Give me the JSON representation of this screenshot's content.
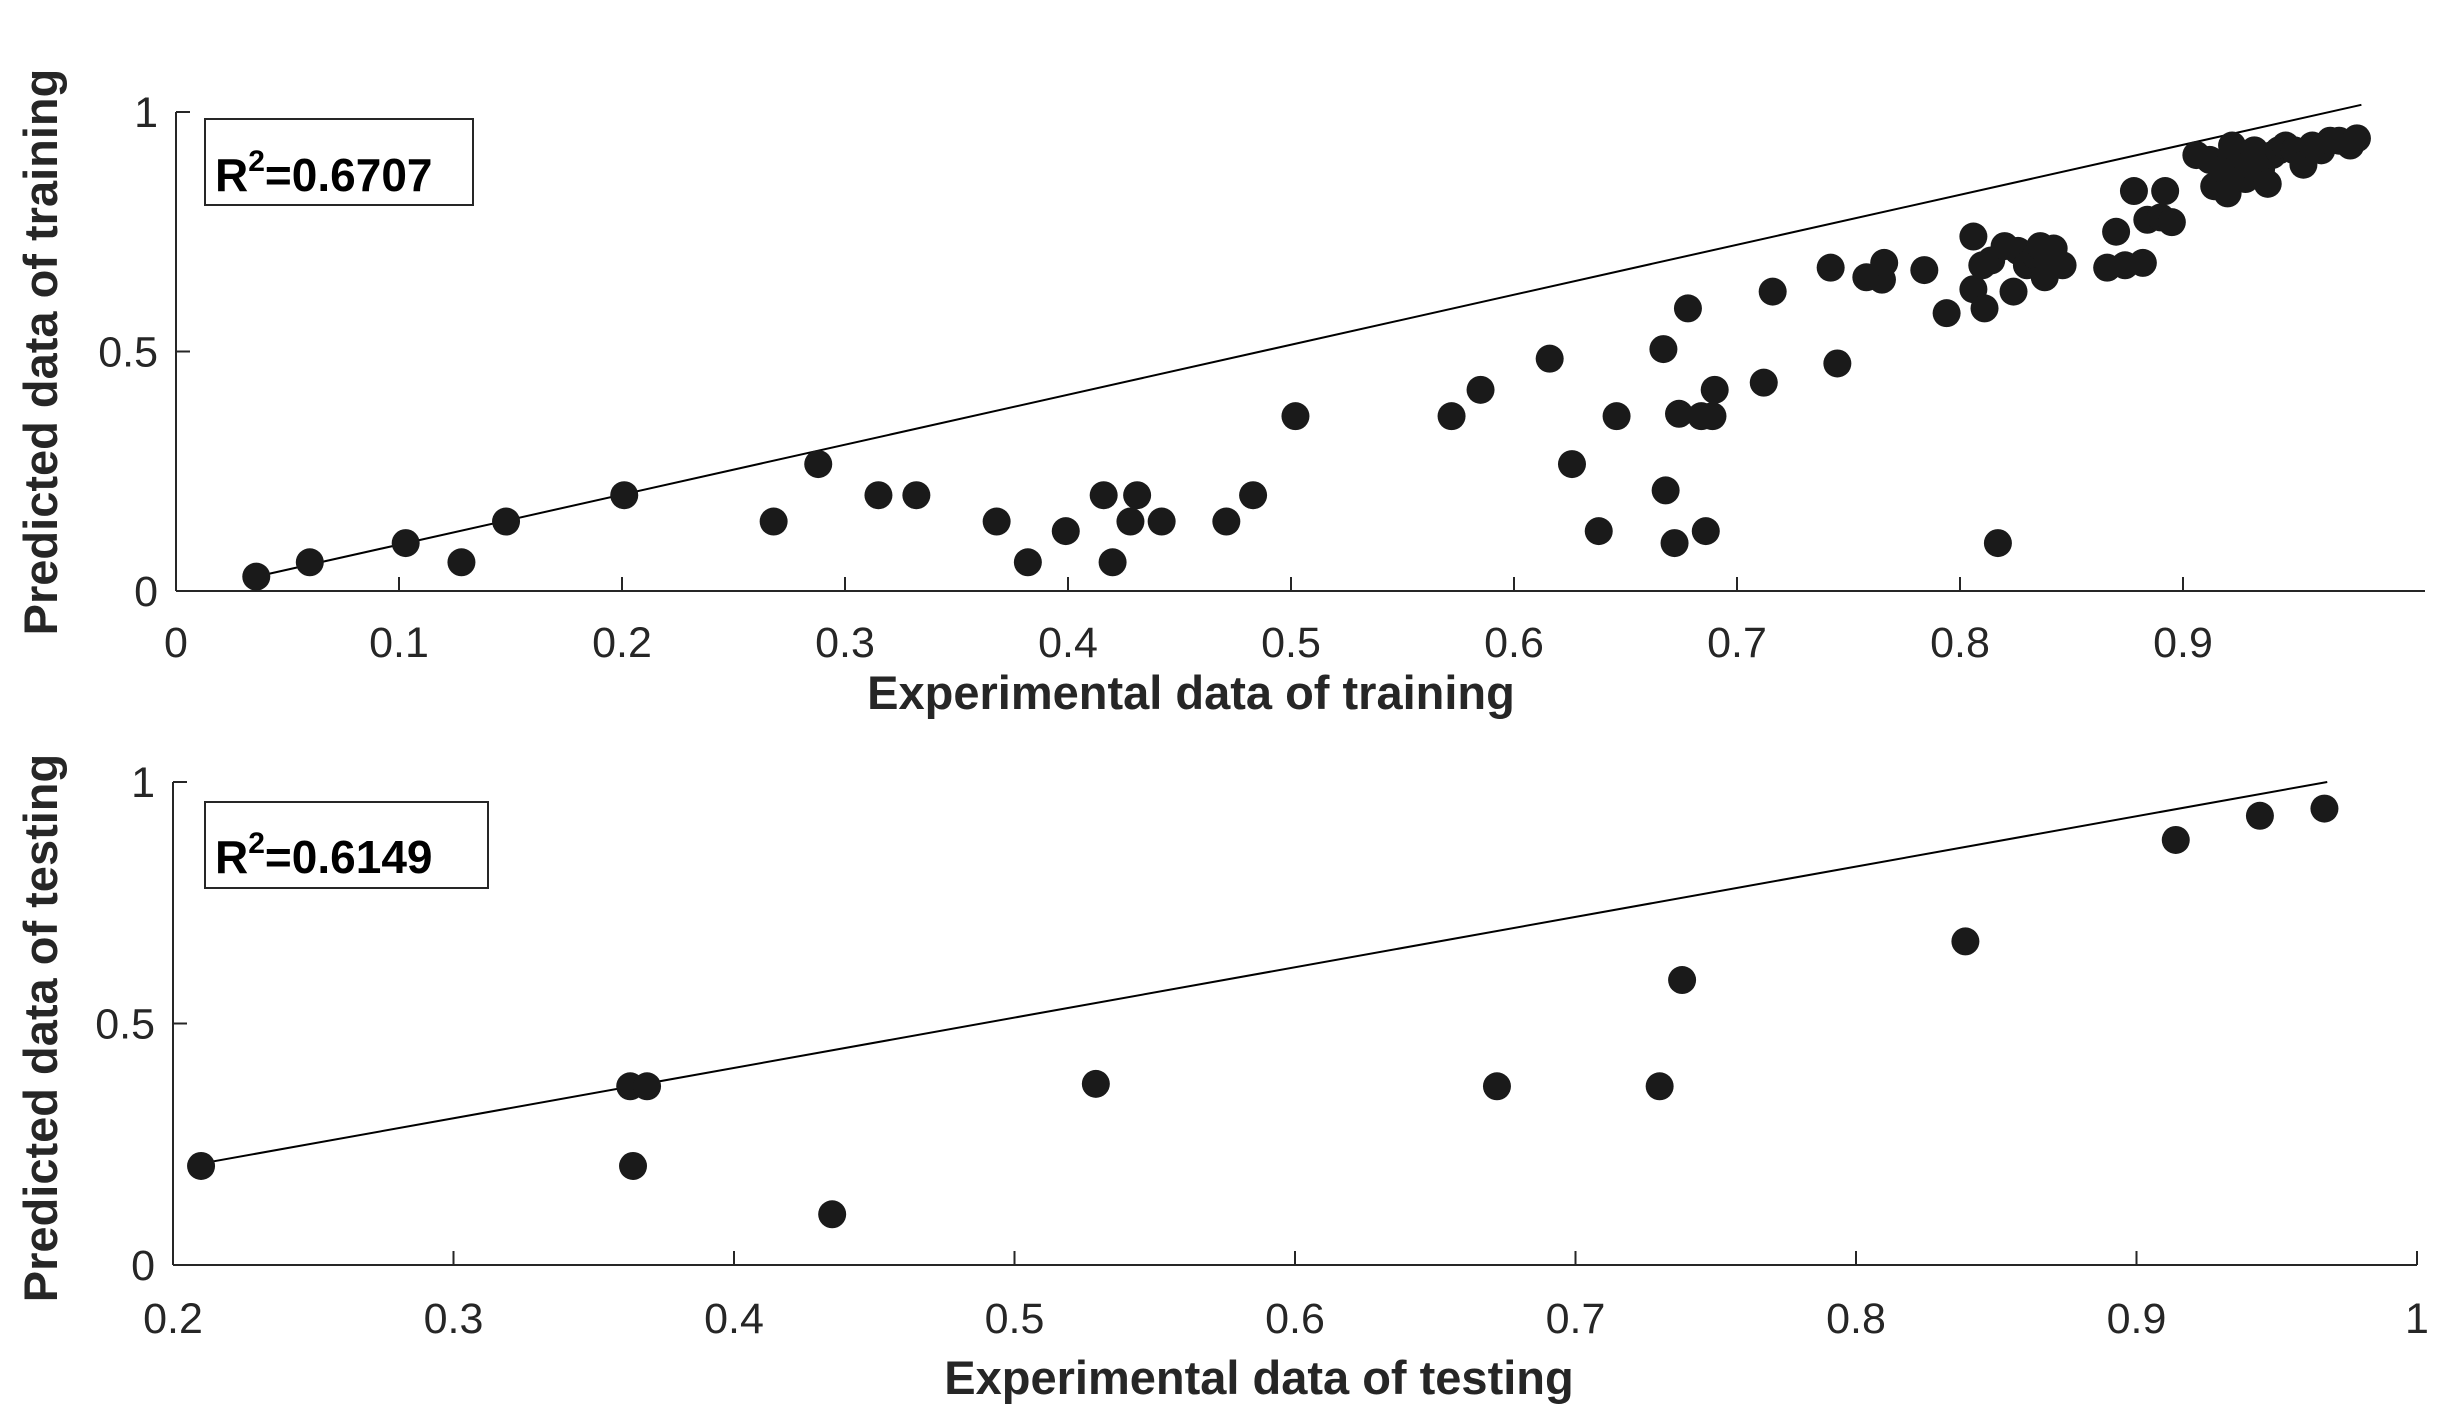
{
  "chart_data": [
    {
      "type": "scatter",
      "panel": "training",
      "xlabel": "Experimental data of training",
      "ylabel": "Predicted data of training",
      "r2_prefix": "R",
      "r2_sup": "2",
      "r2_value": "=0.6707",
      "xlim": [
        0,
        1
      ],
      "ylim": [
        0,
        1
      ],
      "xticks": [
        0,
        0.1,
        0.2,
        0.3,
        0.4,
        0.5,
        0.6,
        0.7,
        0.8,
        0.9
      ],
      "xtick_labels": [
        "0",
        "0.1",
        "0.2",
        "0.3",
        "0.4",
        "0.5",
        "0.6",
        "0.7",
        "0.8",
        "0.9"
      ],
      "yticks": [
        0,
        0.5,
        1
      ],
      "ytick_labels": [
        "0",
        "0.5",
        "1"
      ],
      "fit_line": [
        [
          0.036,
          0.03
        ],
        [
          0.98,
          1.015
        ]
      ],
      "points": [
        [
          0.036,
          0.03
        ],
        [
          0.06,
          0.06
        ],
        [
          0.103,
          0.1
        ],
        [
          0.128,
          0.06
        ],
        [
          0.148,
          0.145
        ],
        [
          0.201,
          0.2
        ],
        [
          0.268,
          0.145
        ],
        [
          0.288,
          0.265
        ],
        [
          0.315,
          0.2
        ],
        [
          0.332,
          0.2
        ],
        [
          0.368,
          0.145
        ],
        [
          0.382,
          0.06
        ],
        [
          0.399,
          0.125
        ],
        [
          0.416,
          0.2
        ],
        [
          0.42,
          0.06
        ],
        [
          0.428,
          0.145
        ],
        [
          0.431,
          0.2
        ],
        [
          0.442,
          0.145
        ],
        [
          0.471,
          0.145
        ],
        [
          0.483,
          0.2
        ],
        [
          0.502,
          0.365
        ],
        [
          0.572,
          0.365
        ],
        [
          0.585,
          0.42
        ],
        [
          0.616,
          0.485
        ],
        [
          0.626,
          0.265
        ],
        [
          0.638,
          0.125
        ],
        [
          0.646,
          0.365
        ],
        [
          0.667,
          0.505
        ],
        [
          0.668,
          0.21
        ],
        [
          0.672,
          0.1
        ],
        [
          0.674,
          0.37
        ],
        [
          0.678,
          0.59
        ],
        [
          0.684,
          0.365
        ],
        [
          0.686,
          0.125
        ],
        [
          0.689,
          0.365
        ],
        [
          0.69,
          0.42
        ],
        [
          0.712,
          0.435
        ],
        [
          0.716,
          0.625
        ],
        [
          0.742,
          0.675
        ],
        [
          0.745,
          0.475
        ],
        [
          0.758,
          0.655
        ],
        [
          0.765,
          0.65
        ],
        [
          0.766,
          0.685
        ],
        [
          0.784,
          0.67
        ],
        [
          0.794,
          0.58
        ],
        [
          0.806,
          0.74
        ],
        [
          0.806,
          0.63
        ],
        [
          0.81,
          0.68
        ],
        [
          0.811,
          0.59
        ],
        [
          0.814,
          0.69
        ],
        [
          0.817,
          0.1
        ],
        [
          0.82,
          0.72
        ],
        [
          0.824,
          0.625
        ],
        [
          0.826,
          0.71
        ],
        [
          0.83,
          0.68
        ],
        [
          0.834,
          0.7
        ],
        [
          0.836,
          0.72
        ],
        [
          0.838,
          0.655
        ],
        [
          0.84,
          0.68
        ],
        [
          0.842,
          0.715
        ],
        [
          0.846,
          0.68
        ],
        [
          0.866,
          0.675
        ],
        [
          0.87,
          0.75
        ],
        [
          0.874,
          0.68
        ],
        [
          0.878,
          0.835
        ],
        [
          0.882,
          0.685
        ],
        [
          0.884,
          0.775
        ],
        [
          0.89,
          0.78
        ],
        [
          0.892,
          0.835
        ],
        [
          0.895,
          0.77
        ],
        [
          0.906,
          0.91
        ],
        [
          0.912,
          0.9
        ],
        [
          0.914,
          0.845
        ],
        [
          0.918,
          0.88
        ],
        [
          0.92,
          0.83
        ],
        [
          0.922,
          0.93
        ],
        [
          0.924,
          0.87
        ],
        [
          0.926,
          0.91
        ],
        [
          0.928,
          0.86
        ],
        [
          0.93,
          0.89
        ],
        [
          0.932,
          0.92
        ],
        [
          0.935,
          0.88
        ],
        [
          0.938,
          0.85
        ],
        [
          0.94,
          0.91
        ],
        [
          0.943,
          0.92
        ],
        [
          0.946,
          0.93
        ],
        [
          0.95,
          0.92
        ],
        [
          0.954,
          0.89
        ],
        [
          0.958,
          0.93
        ],
        [
          0.962,
          0.92
        ],
        [
          0.966,
          0.94
        ],
        [
          0.97,
          0.94
        ],
        [
          0.975,
          0.93
        ],
        [
          0.978,
          0.945
        ]
      ]
    },
    {
      "type": "scatter",
      "panel": "testing",
      "xlabel": "Experimental data of testing",
      "ylabel": "Predicted data of testing",
      "r2_prefix": "R",
      "r2_sup": "2",
      "r2_value": "=0.6149",
      "xlim": [
        0.2,
        1
      ],
      "ylim": [
        0,
        1
      ],
      "xticks": [
        0.2,
        0.3,
        0.4,
        0.5,
        0.6,
        0.7,
        0.8,
        0.9,
        1
      ],
      "xtick_labels": [
        "0.2",
        "0.3",
        "0.4",
        "0.5",
        "0.6",
        "0.7",
        "0.8",
        "0.9",
        "1"
      ],
      "yticks": [
        0,
        0.5,
        1
      ],
      "ytick_labels": [
        "0",
        "0.5",
        "1"
      ],
      "fit_line": [
        [
          0.21,
          0.21
        ],
        [
          0.968,
          1.0
        ]
      ],
      "points": [
        [
          0.21,
          0.205
        ],
        [
          0.363,
          0.37
        ],
        [
          0.364,
          0.205
        ],
        [
          0.369,
          0.37
        ],
        [
          0.435,
          0.105
        ],
        [
          0.529,
          0.375
        ],
        [
          0.672,
          0.37
        ],
        [
          0.73,
          0.37
        ],
        [
          0.738,
          0.59
        ],
        [
          0.839,
          0.67
        ],
        [
          0.914,
          0.88
        ],
        [
          0.944,
          0.93
        ],
        [
          0.967,
          0.945
        ]
      ]
    }
  ]
}
